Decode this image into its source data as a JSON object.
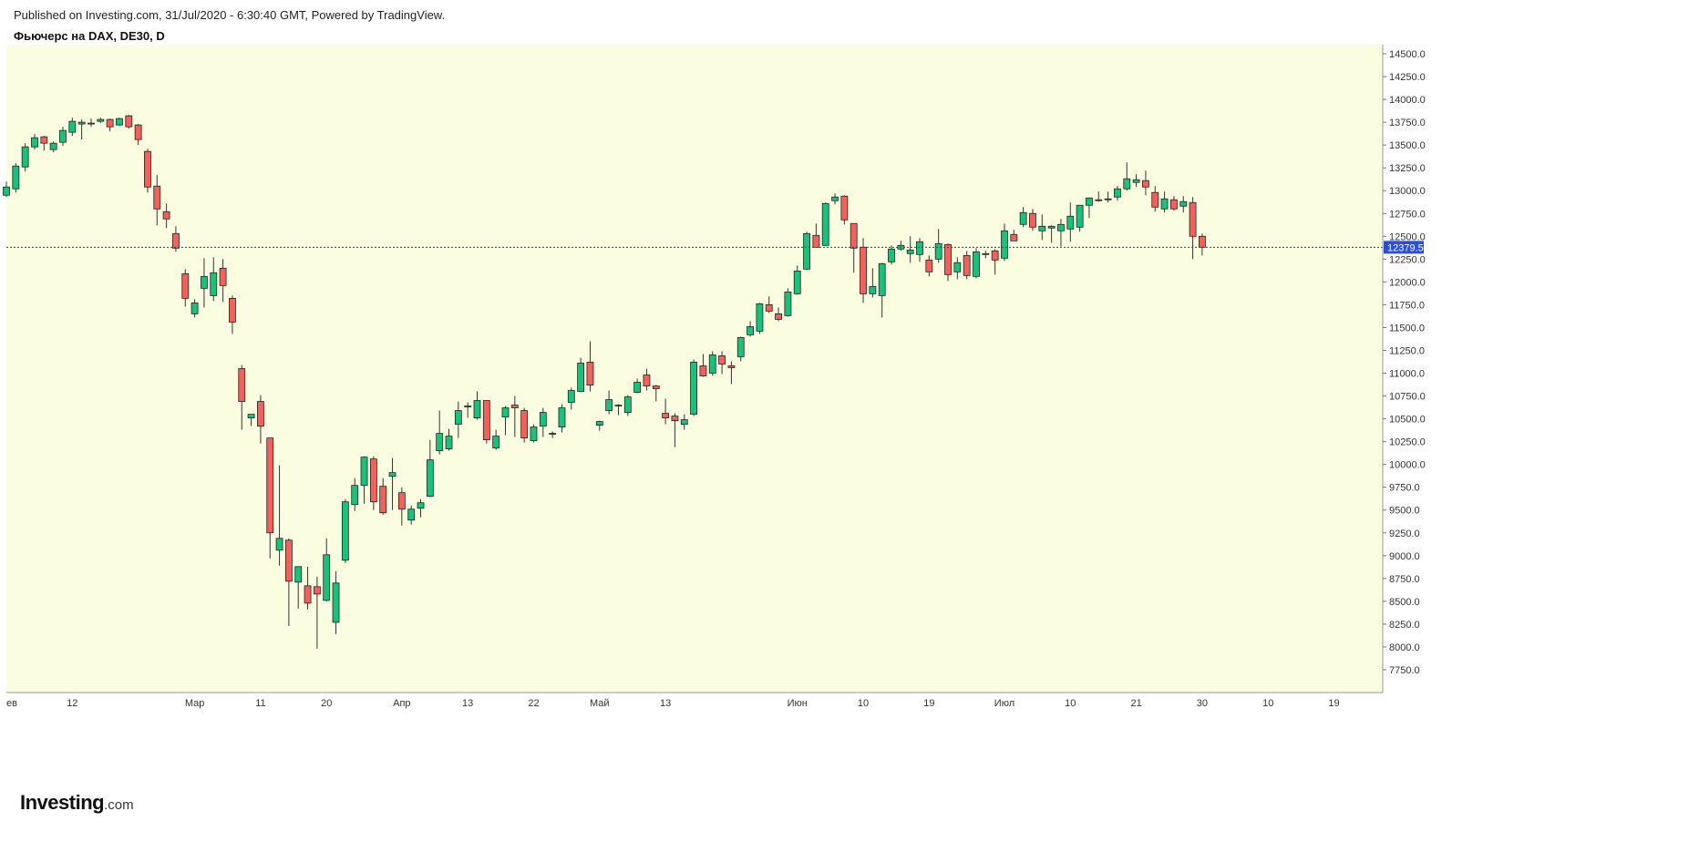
{
  "header": {
    "published": "Published on Investing.com, 31/Jul/2020 - 6:30:40 GMT, Powered by TradingView.",
    "title": "Фьючерс на DAX, DE30, D"
  },
  "logo": {
    "brand": "Investing",
    "suffix": ".com"
  },
  "colors": {
    "background": "#fbfde0",
    "up": "#19c27a",
    "down": "#f4615c",
    "wick": "#333333",
    "price_line": "#2a3aa8",
    "price_label_bg": "#2b4fd6"
  },
  "chart_data": {
    "type": "candlestick",
    "title": "Фьючерс на DAX, DE30, D",
    "y_axis": {
      "position": "right",
      "ylim": [
        7500,
        14600
      ],
      "ticks": [
        7750,
        8000,
        8250,
        8500,
        8750,
        9000,
        9250,
        9500,
        9750,
        10000,
        10250,
        10500,
        10750,
        11000,
        11250,
        11500,
        11750,
        12000,
        12250,
        12500,
        12750,
        13000,
        13250,
        13500,
        13750,
        14000,
        14250,
        14500
      ]
    },
    "x_ticks": [
      {
        "label": "ев",
        "bar": 0
      },
      {
        "label": "12",
        "bar": 7
      },
      {
        "label": "Мар",
        "bar": 20
      },
      {
        "label": "11",
        "bar": 27
      },
      {
        "label": "20",
        "bar": 34
      },
      {
        "label": "Апр",
        "bar": 42
      },
      {
        "label": "13",
        "bar": 49
      },
      {
        "label": "22",
        "bar": 56
      },
      {
        "label": "Май",
        "bar": 63
      },
      {
        "label": "13",
        "bar": 70
      },
      {
        "label": "Июн",
        "bar": 84
      },
      {
        "label": "10",
        "bar": 91
      },
      {
        "label": "19",
        "bar": 98
      },
      {
        "label": "Июл",
        "bar": 106
      },
      {
        "label": "10",
        "bar": 113
      },
      {
        "label": "21",
        "bar": 120
      },
      {
        "label": "30",
        "bar": 127
      },
      {
        "label": "10",
        "bar": 134
      },
      {
        "label": "19",
        "bar": 141
      }
    ],
    "last_price": 12379.5,
    "last_price_label": "12379.5",
    "candles": [
      [
        12950,
        13100,
        12930,
        13040
      ],
      [
        13020,
        13300,
        12980,
        13270
      ],
      [
        13260,
        13520,
        13210,
        13480
      ],
      [
        13480,
        13620,
        13450,
        13580
      ],
      [
        13590,
        13600,
        13440,
        13520
      ],
      [
        13450,
        13540,
        13420,
        13520
      ],
      [
        13530,
        13700,
        13490,
        13660
      ],
      [
        13640,
        13800,
        13600,
        13760
      ],
      [
        13730,
        13780,
        13560,
        13750
      ],
      [
        13730,
        13790,
        13700,
        13740
      ],
      [
        13760,
        13800,
        13740,
        13780
      ],
      [
        13780,
        13790,
        13650,
        13700
      ],
      [
        13720,
        13800,
        13710,
        13790
      ],
      [
        13820,
        13830,
        13680,
        13700
      ],
      [
        13720,
        13730,
        13500,
        13560
      ],
      [
        13430,
        13460,
        12980,
        13040
      ],
      [
        13050,
        13170,
        12620,
        12800
      ],
      [
        12770,
        12860,
        12590,
        12690
      ],
      [
        12530,
        12610,
        12330,
        12370
      ],
      [
        12090,
        12140,
        11730,
        11820
      ],
      [
        11650,
        11810,
        11610,
        11770
      ],
      [
        11930,
        12260,
        11720,
        12060
      ],
      [
        11850,
        12270,
        11790,
        12100
      ],
      [
        12150,
        12250,
        11780,
        11960
      ],
      [
        11820,
        11850,
        11430,
        11560
      ],
      [
        11050,
        11090,
        10380,
        10690
      ],
      [
        10510,
        10550,
        10420,
        10550
      ],
      [
        10690,
        10760,
        10230,
        10420
      ],
      [
        10290,
        10290,
        8970,
        9250
      ],
      [
        9060,
        9990,
        8890,
        9190
      ],
      [
        9170,
        9190,
        8230,
        8720
      ],
      [
        8710,
        8840,
        8420,
        8880
      ],
      [
        8670,
        8880,
        8410,
        8480
      ],
      [
        8660,
        8770,
        7980,
        8580
      ],
      [
        8510,
        9190,
        8500,
        9010
      ],
      [
        8270,
        8830,
        8140,
        8700
      ],
      [
        8950,
        9620,
        8920,
        9590
      ],
      [
        9560,
        9850,
        9490,
        9770
      ],
      [
        9770,
        10090,
        9570,
        10080
      ],
      [
        10060,
        10090,
        9500,
        9590
      ],
      [
        9760,
        9850,
        9450,
        9470
      ],
      [
        9870,
        10070,
        9500,
        9910
      ],
      [
        9690,
        9750,
        9330,
        9510
      ],
      [
        9390,
        9550,
        9340,
        9510
      ],
      [
        9520,
        9620,
        9420,
        9580
      ],
      [
        9650,
        10270,
        9640,
        10050
      ],
      [
        10150,
        10590,
        10110,
        10340
      ],
      [
        10170,
        10390,
        10150,
        10310
      ],
      [
        10440,
        10690,
        10290,
        10590
      ],
      [
        10630,
        10680,
        10510,
        10640
      ],
      [
        10510,
        10800,
        10490,
        10700
      ],
      [
        10700,
        10700,
        10230,
        10270
      ],
      [
        10180,
        10380,
        10160,
        10310
      ],
      [
        10520,
        10640,
        10320,
        10620
      ],
      [
        10650,
        10750,
        10300,
        10620
      ],
      [
        10590,
        10620,
        10240,
        10290
      ],
      [
        10260,
        10440,
        10240,
        10410
      ],
      [
        10420,
        10620,
        10300,
        10570
      ],
      [
        10330,
        10360,
        10290,
        10340
      ],
      [
        10410,
        10660,
        10350,
        10620
      ],
      [
        10680,
        10840,
        10600,
        10810
      ],
      [
        10800,
        11170,
        10790,
        11110
      ],
      [
        11120,
        11350,
        10800,
        10870
      ],
      [
        10430,
        10480,
        10370,
        10470
      ],
      [
        10590,
        10810,
        10550,
        10710
      ],
      [
        10650,
        10660,
        10540,
        10640
      ],
      [
        10570,
        10760,
        10530,
        10740
      ],
      [
        10790,
        10940,
        10780,
        10900
      ],
      [
        10980,
        11050,
        10810,
        10860
      ],
      [
        10860,
        10870,
        10690,
        10830
      ],
      [
        10560,
        10720,
        10440,
        10510
      ],
      [
        10530,
        10560,
        10190,
        10480
      ],
      [
        10440,
        10550,
        10380,
        10490
      ],
      [
        10550,
        11150,
        10530,
        11120
      ],
      [
        11080,
        11210,
        10960,
        10970
      ],
      [
        11000,
        11240,
        10970,
        11200
      ],
      [
        11190,
        11240,
        10990,
        11100
      ],
      [
        11080,
        11130,
        10880,
        11060
      ],
      [
        11180,
        11400,
        11130,
        11390
      ],
      [
        11420,
        11570,
        11400,
        11510
      ],
      [
        11460,
        11770,
        11430,
        11760
      ],
      [
        11750,
        11840,
        11660,
        11680
      ],
      [
        11650,
        11720,
        11570,
        11590
      ],
      [
        11630,
        11930,
        11620,
        11890
      ],
      [
        11870,
        12180,
        11860,
        12120
      ],
      [
        12140,
        12550,
        12130,
        12530
      ],
      [
        12510,
        12640,
        12380,
        12380
      ],
      [
        12400,
        12870,
        12400,
        12860
      ],
      [
        12890,
        12970,
        12850,
        12930
      ],
      [
        12940,
        12950,
        12630,
        12680
      ],
      [
        12640,
        12640,
        12100,
        12370
      ],
      [
        12380,
        12480,
        11770,
        11870
      ],
      [
        11870,
        12150,
        11830,
        11950
      ],
      [
        11850,
        12210,
        11610,
        12200
      ],
      [
        12220,
        12400,
        12190,
        12360
      ],
      [
        12360,
        12450,
        12340,
        12400
      ],
      [
        12310,
        12500,
        12210,
        12350
      ],
      [
        12300,
        12480,
        12220,
        12440
      ],
      [
        12240,
        12290,
        12060,
        12110
      ],
      [
        12250,
        12580,
        12210,
        12420
      ],
      [
        12410,
        12420,
        12010,
        12080
      ],
      [
        12110,
        12270,
        12030,
        12210
      ],
      [
        12290,
        12340,
        12030,
        12070
      ],
      [
        12060,
        12370,
        12040,
        12330
      ],
      [
        12300,
        12340,
        12260,
        12310
      ],
      [
        12340,
        12360,
        12080,
        12240
      ],
      [
        12260,
        12640,
        12230,
        12560
      ],
      [
        12520,
        12570,
        12450,
        12450
      ],
      [
        12630,
        12820,
        12600,
        12760
      ],
      [
        12750,
        12800,
        12560,
        12600
      ],
      [
        12560,
        12740,
        12460,
        12610
      ],
      [
        12590,
        12620,
        12430,
        12610
      ],
      [
        12560,
        12690,
        12390,
        12630
      ],
      [
        12580,
        12870,
        12440,
        12720
      ],
      [
        12600,
        12830,
        12550,
        12840
      ],
      [
        12840,
        12920,
        12700,
        12920
      ],
      [
        12890,
        12990,
        12880,
        12900
      ],
      [
        12910,
        12990,
        12870,
        12910
      ],
      [
        12930,
        13050,
        12890,
        13020
      ],
      [
        13020,
        13310,
        13000,
        13130
      ],
      [
        13090,
        13180,
        13040,
        13120
      ],
      [
        13110,
        13220,
        12950,
        13040
      ],
      [
        12980,
        13050,
        12770,
        12820
      ],
      [
        12800,
        12990,
        12760,
        12910
      ],
      [
        12900,
        12940,
        12780,
        12800
      ],
      [
        12830,
        12940,
        12760,
        12880
      ],
      [
        12870,
        12930,
        12250,
        12500
      ],
      [
        12500,
        12530,
        12290,
        12380
      ]
    ]
  }
}
